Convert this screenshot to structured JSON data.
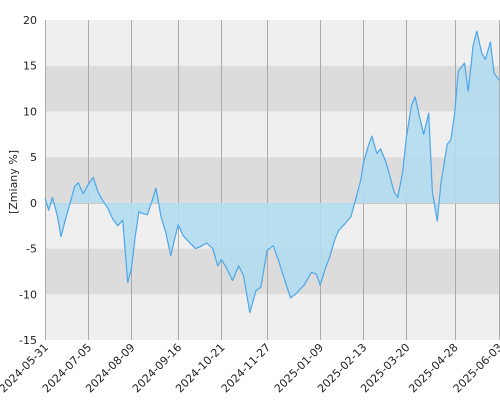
{
  "chart_data": {
    "type": "area",
    "title": "",
    "xlabel": "",
    "ylabel": "[Zmiany %]",
    "ylim": [
      -15,
      20
    ],
    "xlim": [
      "2024-05-31",
      "2025-06-03"
    ],
    "y_ticks": [
      -15,
      -10,
      -5,
      0,
      5,
      10,
      15,
      20
    ],
    "x_ticks": [
      "2024-05-31",
      "2024-07-05",
      "2024-08-09",
      "2024-09-16",
      "2024-10-21",
      "2024-11-27",
      "2025-01-09",
      "2025-02-13",
      "2025-03-20",
      "2025-04-28",
      "2025-06-03"
    ],
    "grid": true,
    "legend": "none",
    "colors": {
      "line": "#4da6e8",
      "fill": "#b3dcee",
      "band_dark": "#dcdcdc",
      "band_light": "#efefef",
      "gridline": "#aaaaaa",
      "zero_line": "#c8c8c8"
    },
    "series": [
      {
        "x": [
          "2024-05-31",
          "2024-06-03",
          "2024-06-06",
          "2024-06-10",
          "2024-06-13",
          "2024-06-17",
          "2024-06-20",
          "2024-06-24",
          "2024-06-27",
          "2024-07-01",
          "2024-07-05",
          "2024-07-09",
          "2024-07-13",
          "2024-07-17",
          "2024-07-21",
          "2024-07-25",
          "2024-07-29",
          "2024-08-02",
          "2024-08-06",
          "2024-08-09",
          "2024-08-12",
          "2024-08-15",
          "2024-08-19",
          "2024-08-22",
          "2024-08-26",
          "2024-08-29",
          "2024-09-02",
          "2024-09-06",
          "2024-09-10",
          "2024-09-13",
          "2024-09-16",
          "2024-09-20",
          "2024-09-25",
          "2024-09-30",
          "2024-10-04",
          "2024-10-09",
          "2024-10-14",
          "2024-10-18",
          "2024-10-21",
          "2024-10-25",
          "2024-10-30",
          "2024-11-04",
          "2024-11-08",
          "2024-11-13",
          "2024-11-18",
          "2024-11-22",
          "2024-11-27",
          "2024-12-02",
          "2024-12-06",
          "2024-12-11",
          "2024-12-16",
          "2024-12-20",
          "2024-12-27",
          "2025-01-02",
          "2025-01-06",
          "2025-01-09",
          "2025-01-13",
          "2025-01-17",
          "2025-01-21",
          "2025-01-24",
          "2025-01-29",
          "2025-02-03",
          "2025-02-07",
          "2025-02-11",
          "2025-02-13",
          "2025-02-17",
          "2025-02-20",
          "2025-02-24",
          "2025-02-27",
          "2025-03-03",
          "2025-03-06",
          "2025-03-10",
          "2025-03-13",
          "2025-03-17",
          "2025-03-20",
          "2025-03-24",
          "2025-03-27",
          "2025-03-31",
          "2025-04-03",
          "2025-04-07",
          "2025-04-10",
          "2025-04-14",
          "2025-04-17",
          "2025-04-22",
          "2025-04-25",
          "2025-04-28",
          "2025-05-01",
          "2025-05-06",
          "2025-05-09",
          "2025-05-13",
          "2025-05-16",
          "2025-05-20",
          "2025-05-23",
          "2025-05-27",
          "2025-05-30",
          "2025-06-03"
        ],
        "y": [
          0.5,
          -0.8,
          0.6,
          -1.4,
          -3.7,
          -1.6,
          -0.2,
          1.8,
          2.2,
          1.0,
          2.0,
          2.8,
          1.2,
          0.2,
          -0.6,
          -1.8,
          -2.5,
          -1.9,
          -8.7,
          -7.2,
          -3.8,
          -1.0,
          -1.2,
          -1.3,
          0.3,
          1.6,
          -1.5,
          -3.3,
          -5.8,
          -4.0,
          -2.4,
          -3.6,
          -4.3,
          -5.0,
          -4.8,
          -4.4,
          -5.0,
          -6.9,
          -6.2,
          -7.1,
          -8.5,
          -6.9,
          -8.0,
          -12.0,
          -9.6,
          -9.2,
          -5.2,
          -4.7,
          -6.2,
          -8.3,
          -10.4,
          -10.0,
          -9.0,
          -7.6,
          -7.8,
          -9.0,
          -7.3,
          -5.8,
          -4.0,
          -3.0,
          -2.3,
          -1.5,
          0.5,
          2.5,
          4.3,
          6.2,
          7.3,
          5.4,
          5.9,
          4.6,
          3.2,
          1.2,
          0.6,
          3.5,
          7.3,
          10.6,
          11.6,
          9.2,
          7.5,
          9.8,
          1.2,
          -2.0,
          2.2,
          6.4,
          6.9,
          9.8,
          14.4,
          15.3,
          12.2,
          17.2,
          18.8,
          16.4,
          15.7,
          17.6,
          14.2,
          13.4
        ]
      }
    ]
  }
}
